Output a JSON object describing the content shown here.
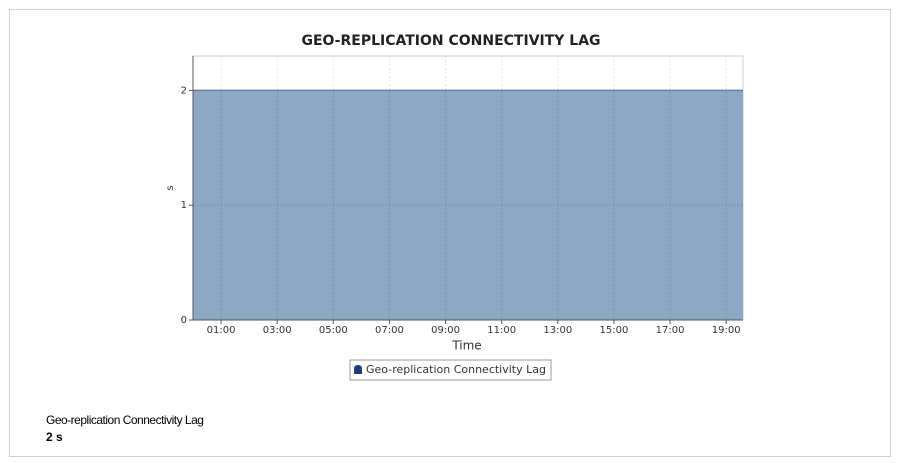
{
  "chart_data": {
    "type": "area",
    "title": "GEO-REPLICATION CONNECTIVITY LAG",
    "x_label": "Time",
    "y_label": "s",
    "series": [
      {
        "name": "Geo-replication Connectivity Lag",
        "color": "#8da7c4",
        "line_color": "#6a88ad",
        "x": [
          "00:00",
          "19:36"
        ],
        "values": [
          2,
          2
        ]
      }
    ],
    "xlim": [
      "00:00",
      "19:36"
    ],
    "xticks": [
      "01:00",
      "03:00",
      "05:00",
      "07:00",
      "09:00",
      "11:00",
      "13:00",
      "15:00",
      "17:00",
      "19:00"
    ],
    "ylim": [
      0,
      2.3
    ],
    "yticks": [
      0,
      1,
      2
    ],
    "grid": true
  },
  "summary": {
    "label": "Geo-replication Connectivity Lag",
    "value": "2 s"
  }
}
